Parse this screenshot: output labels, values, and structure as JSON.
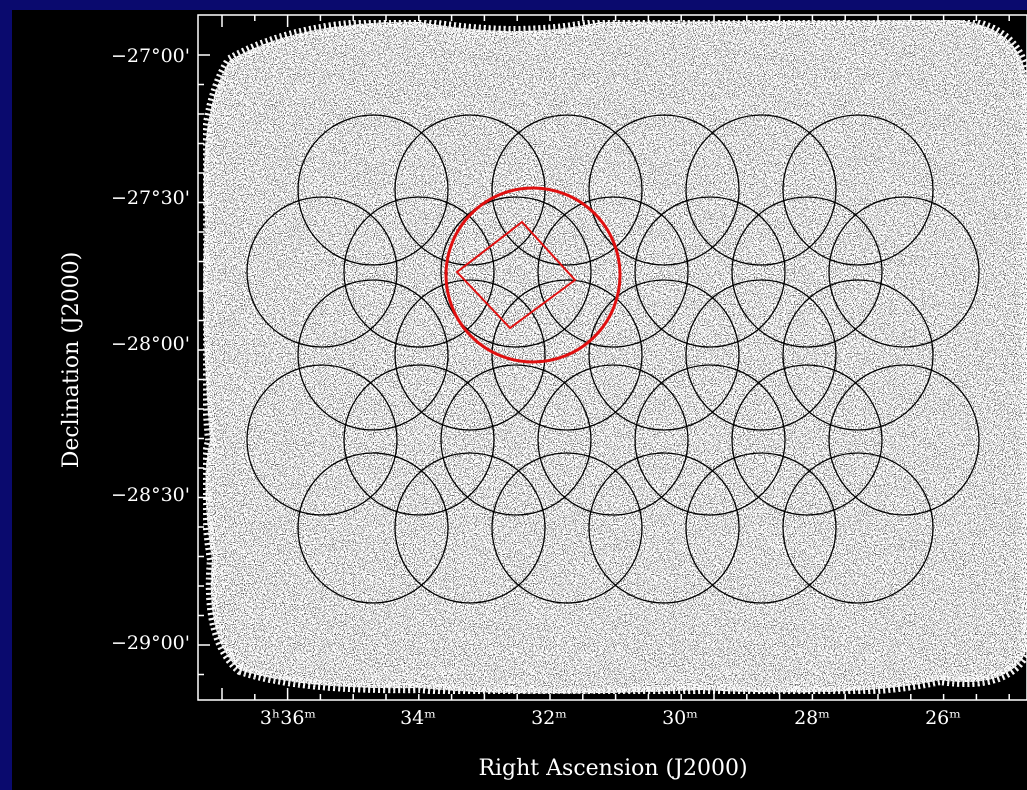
{
  "axes": {
    "x_label": "Right Ascension (J2000)",
    "y_label": "Declination (J2000)",
    "x_ticks": [
      "3ʰ36ᵐ",
      "34ᵐ",
      "32ᵐ",
      "30ᵐ",
      "28ᵐ",
      "26ᵐ"
    ],
    "y_ticks": [
      "−27°00'",
      "−27°30'",
      "−28°00'",
      "−28°30'",
      "−29°00'"
    ]
  }
}
